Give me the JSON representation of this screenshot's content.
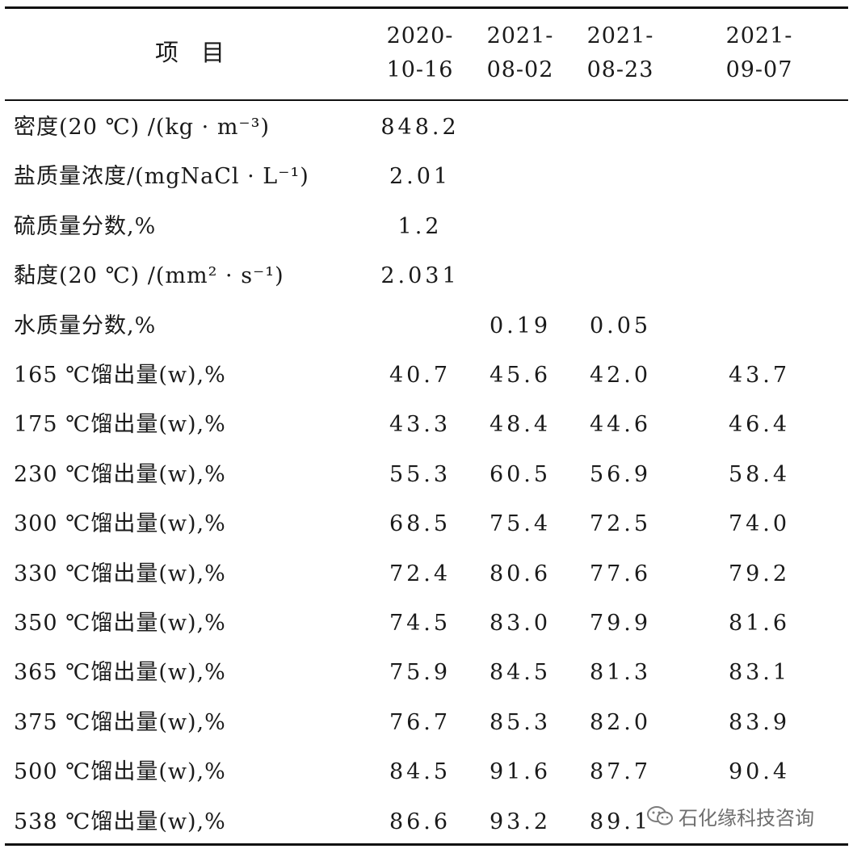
{
  "table": {
    "header": {
      "item": "项目",
      "dates": [
        [
          "2020-",
          "10-16"
        ],
        [
          "2021-",
          "08-02"
        ],
        [
          "2021-",
          "08-23"
        ],
        [
          "2021-",
          "09-07"
        ]
      ]
    },
    "rows": [
      {
        "label": "密度(20 ℃) /(kg · m⁻³)",
        "values": [
          "848.2",
          "",
          "",
          ""
        ]
      },
      {
        "label": "盐质量浓度/(mgNaCl · L⁻¹)",
        "values": [
          "2.01",
          "",
          "",
          ""
        ]
      },
      {
        "label": "硫质量分数,%",
        "values": [
          "1.2",
          "",
          "",
          ""
        ]
      },
      {
        "label": "黏度(20 ℃) /(mm² · s⁻¹)",
        "values": [
          "2.031",
          "",
          "",
          ""
        ]
      },
      {
        "label": "水质量分数,%",
        "values": [
          "",
          "0.19",
          "0.05",
          ""
        ]
      },
      {
        "label": "165 ℃馏出量(w),%",
        "values": [
          "40.7",
          "45.6",
          "42.0",
          "43.7"
        ]
      },
      {
        "label": "175 ℃馏出量(w),%",
        "values": [
          "43.3",
          "48.4",
          "44.6",
          "46.4"
        ]
      },
      {
        "label": "230 ℃馏出量(w),%",
        "values": [
          "55.3",
          "60.5",
          "56.9",
          "58.4"
        ]
      },
      {
        "label": "300 ℃馏出量(w),%",
        "values": [
          "68.5",
          "75.4",
          "72.5",
          "74.0"
        ]
      },
      {
        "label": "330 ℃馏出量(w),%",
        "values": [
          "72.4",
          "80.6",
          "77.6",
          "79.2"
        ]
      },
      {
        "label": "350 ℃馏出量(w),%",
        "values": [
          "74.5",
          "83.0",
          "79.9",
          "81.6"
        ]
      },
      {
        "label": "365 ℃馏出量(w),%",
        "values": [
          "75.9",
          "84.5",
          "81.3",
          "83.1"
        ]
      },
      {
        "label": "375 ℃馏出量(w),%",
        "values": [
          "76.7",
          "85.3",
          "82.0",
          "83.9"
        ]
      },
      {
        "label": "500 ℃馏出量(w),%",
        "values": [
          "84.5",
          "91.6",
          "87.7",
          "90.4"
        ]
      },
      {
        "label": "538 ℃馏出量(w),%",
        "values": [
          "86.6",
          "93.2",
          "89.1",
          ""
        ]
      }
    ]
  },
  "watermark": {
    "icon": "wechat-icon",
    "text": "石化缘科技咨询"
  }
}
